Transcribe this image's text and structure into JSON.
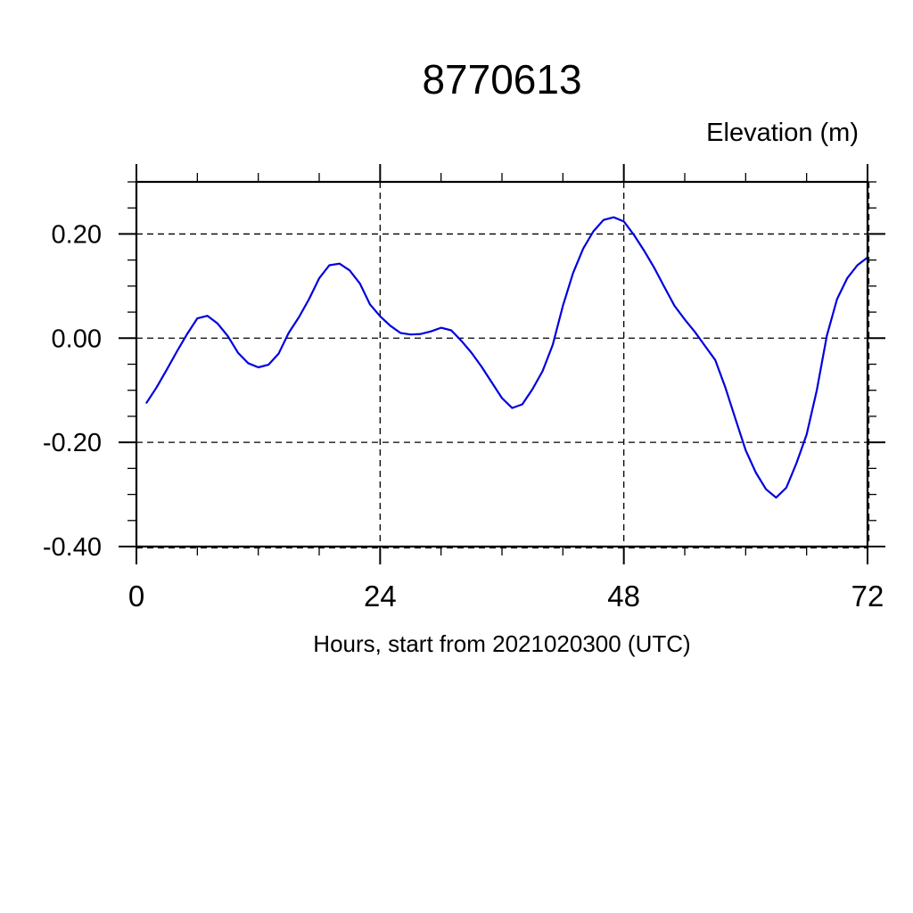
{
  "page_background": "#ffffff",
  "chart_data": {
    "type": "line",
    "title": "8770613",
    "ylabel": "Elevation (m)",
    "xlabel": "Hours, start from 2021020300 (UTC)",
    "xlim": [
      0,
      72
    ],
    "ylim": [
      -0.4,
      0.3
    ],
    "x_major_ticks": [
      0,
      24,
      48,
      72
    ],
    "x_tick_labels": [
      "0",
      "24",
      "48",
      "72"
    ],
    "x_minor_tick_step": 6,
    "y_major_ticks": [
      0.2,
      0.0,
      -0.2,
      -0.4
    ],
    "y_tick_labels": [
      "0.20",
      "0.00",
      "-0.20",
      "-0.40"
    ],
    "y_minor_tick_step": 0.05,
    "grid": {
      "style": "dashed",
      "x_hours": [
        24,
        48,
        72
      ],
      "y_values": [
        0.2,
        0.0,
        -0.2,
        -0.4
      ]
    },
    "axis_color": "#000000",
    "line_color": "#0000dd",
    "series": [
      {
        "name": "elevation_m",
        "hours": [
          1,
          2,
          3,
          4,
          5,
          6,
          7,
          8,
          9,
          10,
          11,
          12,
          13,
          14,
          15,
          16,
          17,
          18,
          19,
          20,
          21,
          22,
          23,
          24,
          25,
          26,
          27,
          28,
          29,
          30,
          31,
          32,
          33,
          34,
          35,
          36,
          37,
          38,
          39,
          40,
          41,
          42,
          43,
          44,
          45,
          46,
          47,
          48,
          49,
          50,
          51,
          52,
          53,
          54,
          55,
          56,
          57,
          58,
          59,
          60,
          61,
          62,
          63,
          64,
          65,
          66,
          67,
          68,
          69,
          70,
          71,
          72
        ],
        "values": [
          -0.124,
          -0.094,
          -0.06,
          -0.025,
          0.008,
          0.038,
          0.043,
          0.028,
          0.004,
          -0.028,
          -0.048,
          -0.056,
          -0.051,
          -0.03,
          0.01,
          0.04,
          0.075,
          0.115,
          0.14,
          0.143,
          0.13,
          0.105,
          0.065,
          0.042,
          0.024,
          0.01,
          0.007,
          0.008,
          0.013,
          0.02,
          0.015,
          -0.005,
          -0.028,
          -0.055,
          -0.085,
          -0.115,
          -0.134,
          -0.127,
          -0.098,
          -0.063,
          -0.013,
          0.062,
          0.125,
          0.172,
          0.205,
          0.227,
          0.232,
          0.224,
          0.198,
          0.168,
          0.135,
          0.098,
          0.062,
          0.036,
          0.012,
          -0.015,
          -0.042,
          -0.095,
          -0.155,
          -0.215,
          -0.258,
          -0.29,
          -0.306,
          -0.287,
          -0.24,
          -0.185,
          -0.1,
          0.005,
          0.075,
          0.115,
          0.14,
          0.155
        ]
      }
    ]
  }
}
